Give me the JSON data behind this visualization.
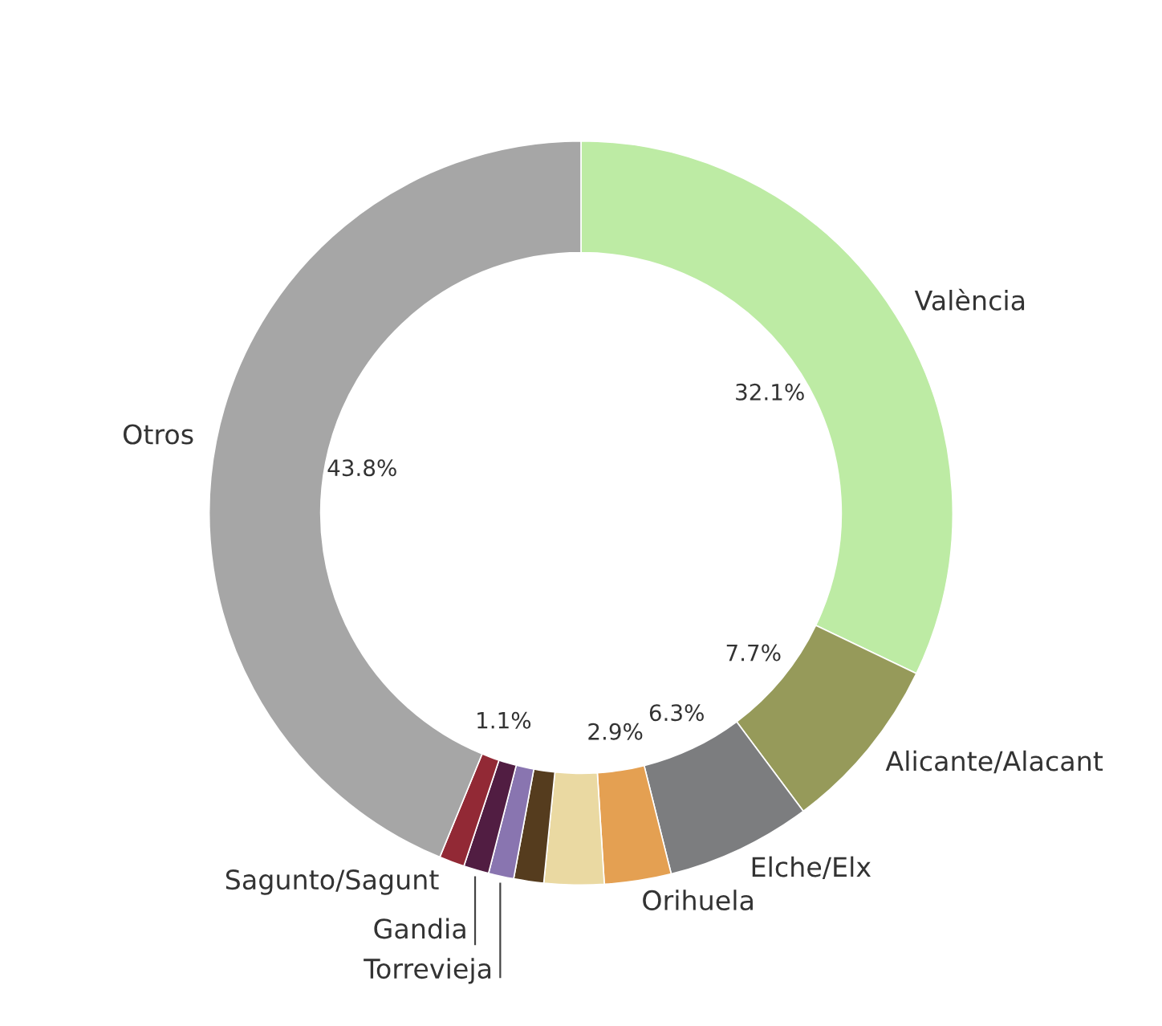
{
  "chart_data": {
    "type": "donut",
    "categories": [
      "València",
      "Alicante/Alacant",
      "Elche/Elx",
      "Orihuela",
      null,
      null,
      "Torrevieja",
      "Gandia",
      "Sagunto/Sagunt",
      "Otros"
    ],
    "values": [
      32.1,
      7.7,
      6.3,
      2.9,
      2.6,
      1.3,
      1.1,
      1.1,
      1.1,
      43.8
    ],
    "value_labels": [
      "32.1%",
      "7.7%",
      "6.3%",
      "2.9%",
      null,
      null,
      null,
      null,
      "1.1%",
      "43.8%"
    ],
    "colors": [
      "#bdeba4",
      "#969a5a",
      "#7c7d7f",
      "#e4a052",
      "#ead9a2",
      "#553c1e",
      "#8975b0",
      "#511d42",
      "#922935",
      "#a6a6a6"
    ],
    "legend": false
  }
}
